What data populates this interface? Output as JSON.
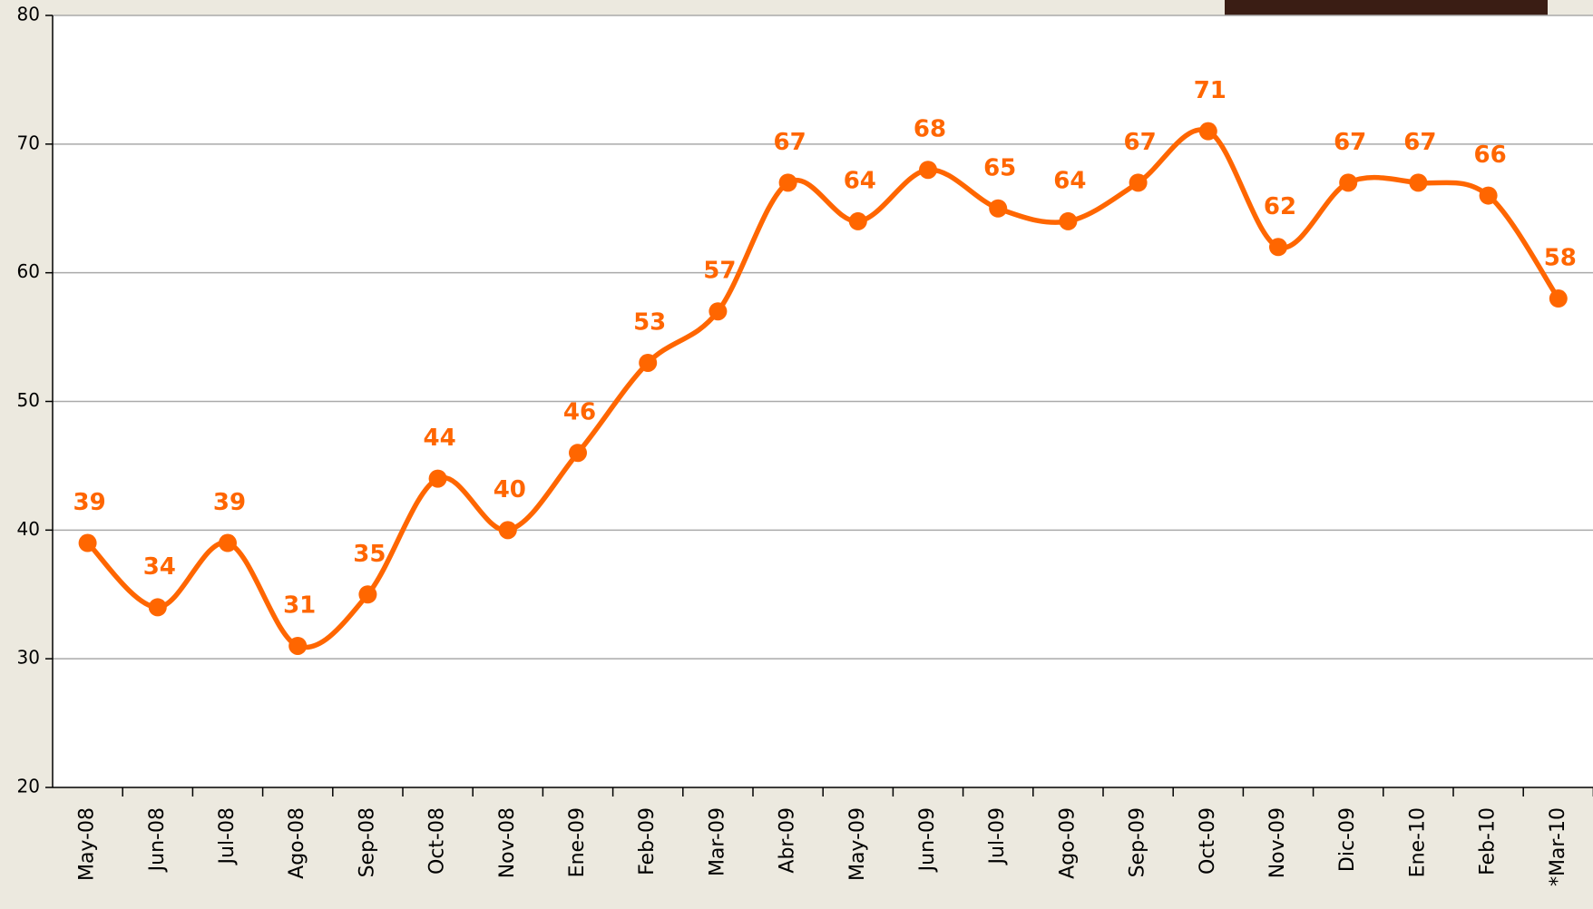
{
  "chart_data": {
    "type": "line",
    "categories": [
      "May-08",
      "Jun-08",
      "Jul-08",
      "Ago-08",
      "Sep-08",
      "Oct-08",
      "Nov-08",
      "Ene-09",
      "Feb-09",
      "Mar-09",
      "Abr-09",
      "May-09",
      "Jun-09",
      "Jul-09",
      "Ago-09",
      "Sep-09",
      "Oct-09",
      "Nov-09",
      "Dic-09",
      "Ene-10",
      "Feb-10",
      "*Mar-10"
    ],
    "values": [
      39,
      34,
      39,
      31,
      35,
      44,
      40,
      46,
      53,
      57,
      67,
      64,
      68,
      65,
      64,
      67,
      71,
      62,
      67,
      67,
      66,
      58
    ],
    "color": "#ff6600",
    "ylim": [
      20,
      80
    ],
    "yticks": [
      20,
      30,
      40,
      50,
      60,
      70,
      80
    ],
    "grid": true
  }
}
